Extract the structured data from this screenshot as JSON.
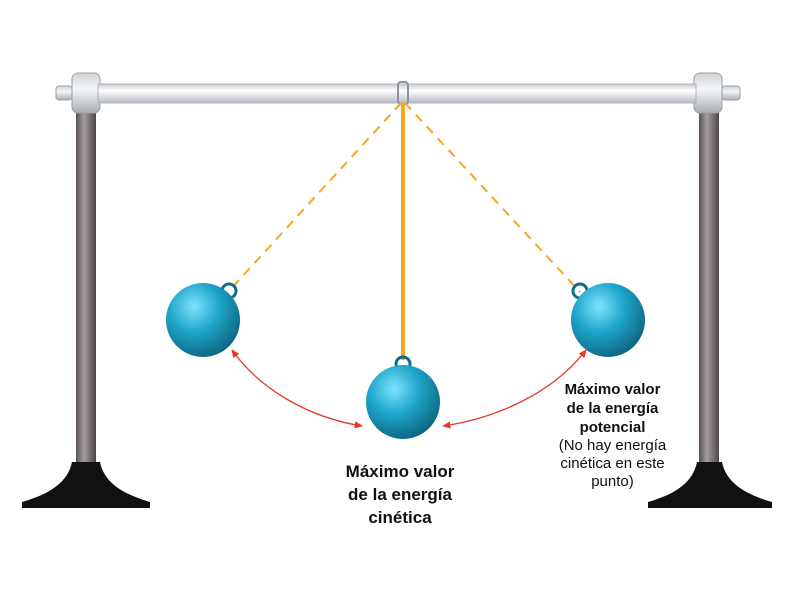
{
  "labels": {
    "kinetic": {
      "line1": "Máximo valor",
      "line2": "de la energía",
      "line3": "cinética"
    },
    "potential": {
      "line1": "Máximo valor",
      "line2": "de la energía",
      "line3": "potencial",
      "note1": "(No hay energía",
      "note2": "cinética en este",
      "note3": "punto)"
    }
  },
  "colors": {
    "ball": "#1fa6cc",
    "ball_dark": "#0b6f8c",
    "string": "#f5a623",
    "arc_arrow": "#e8362a",
    "post": "#7d7575",
    "base": "#111111",
    "rod": "#e4e7ea"
  },
  "icons": {
    "pendulum_ball": "sphere",
    "support_base": "black-foot"
  }
}
